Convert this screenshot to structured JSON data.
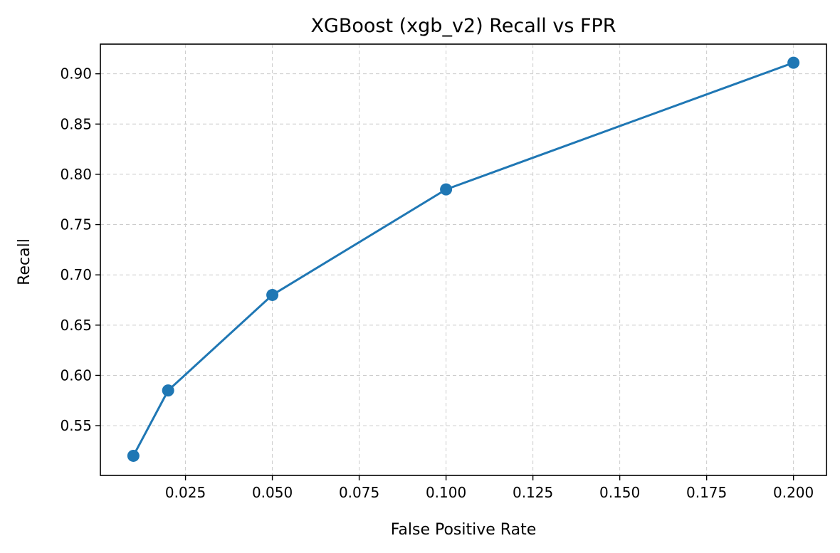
{
  "chart_data": {
    "type": "line",
    "title": "XGBoost (xgb_v2) Recall vs FPR",
    "xlabel": "False Positive Rate",
    "ylabel": "Recall",
    "xlim": [
      0.0005,
      0.2095
    ],
    "ylim": [
      0.5005,
      0.9295
    ],
    "x_ticks": [
      0.025,
      0.05,
      0.075,
      0.1,
      0.125,
      0.15,
      0.175,
      0.2
    ],
    "x_tick_labels": [
      "0.025",
      "0.050",
      "0.075",
      "0.100",
      "0.125",
      "0.150",
      "0.175",
      "0.200"
    ],
    "y_ticks": [
      0.55,
      0.6,
      0.65,
      0.7,
      0.75,
      0.8,
      0.85,
      0.9
    ],
    "y_tick_labels": [
      "0.55",
      "0.60",
      "0.65",
      "0.70",
      "0.75",
      "0.80",
      "0.85",
      "0.90"
    ],
    "grid": true,
    "color": "#1f77b4",
    "series": [
      {
        "x": [
          0.01,
          0.02,
          0.05,
          0.1,
          0.2
        ],
        "y": [
          0.52,
          0.585,
          0.68,
          0.785,
          0.911
        ]
      }
    ]
  }
}
